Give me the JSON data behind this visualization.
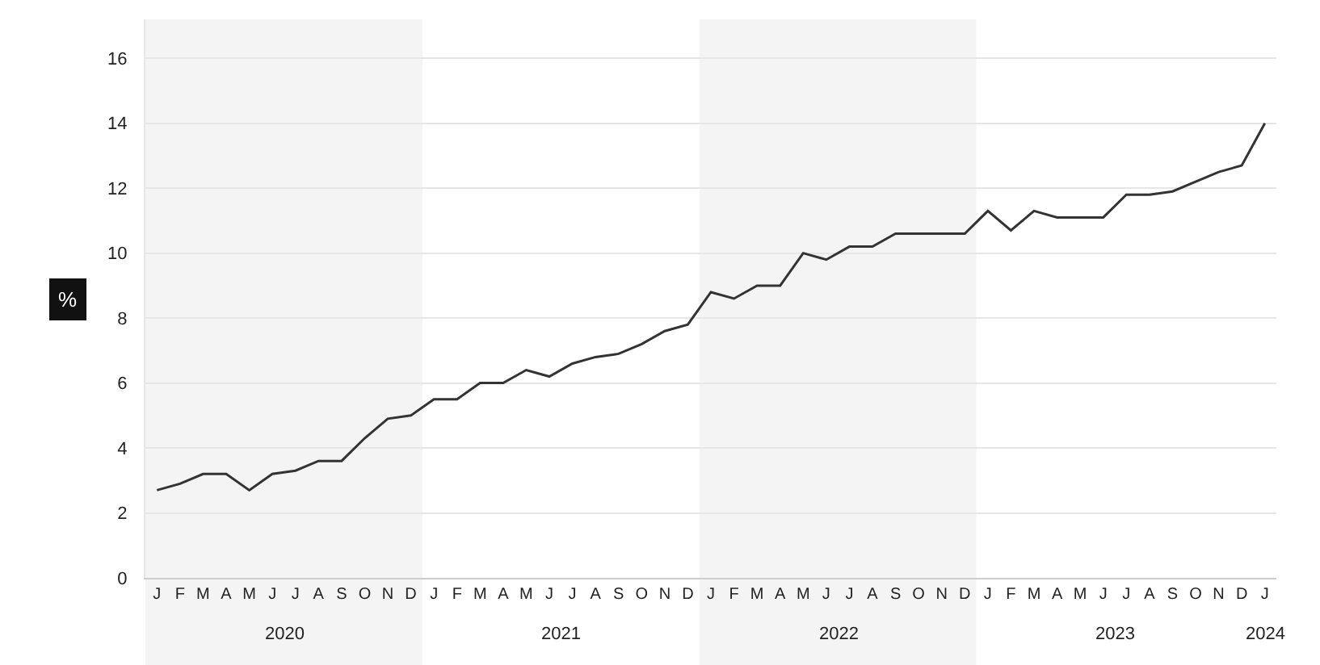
{
  "chart_data": {
    "type": "line",
    "ylabel": "%",
    "categories": [
      "J",
      "F",
      "M",
      "A",
      "M",
      "J",
      "J",
      "A",
      "S",
      "O",
      "N",
      "D",
      "J",
      "F",
      "M",
      "A",
      "M",
      "J",
      "J",
      "A",
      "S",
      "O",
      "N",
      "D",
      "J",
      "F",
      "M",
      "A",
      "M",
      "J",
      "J",
      "A",
      "S",
      "O",
      "N",
      "D",
      "J",
      "F",
      "M",
      "A",
      "M",
      "J",
      "J",
      "A",
      "S",
      "O",
      "N",
      "D",
      "J"
    ],
    "series": [
      {
        "color": "#333333",
        "values": [
          2.7,
          2.9,
          3.2,
          3.2,
          2.7,
          3.2,
          3.3,
          3.6,
          3.6,
          4.3,
          4.9,
          5.0,
          5.5,
          5.5,
          6.0,
          6.0,
          6.4,
          6.2,
          6.6,
          6.8,
          6.9,
          7.2,
          7.6,
          7.8,
          8.8,
          8.6,
          9.0,
          9.0,
          10.0,
          9.8,
          10.2,
          10.2,
          10.6,
          10.6,
          10.6,
          10.6,
          11.3,
          10.7,
          11.3,
          11.1,
          11.1,
          11.1,
          11.8,
          11.8,
          11.9,
          12.2,
          12.5,
          12.7,
          14.0
        ]
      }
    ],
    "annotations": [
      "2020",
      "2021",
      "2022",
      "2023",
      "2024"
    ],
    "ylim": [
      0,
      17.2
    ],
    "yticks": [
      0,
      2,
      4,
      6,
      8,
      10,
      12,
      14,
      16
    ],
    "grid": "y",
    "marker": "none",
    "line_style": "solid"
  }
}
